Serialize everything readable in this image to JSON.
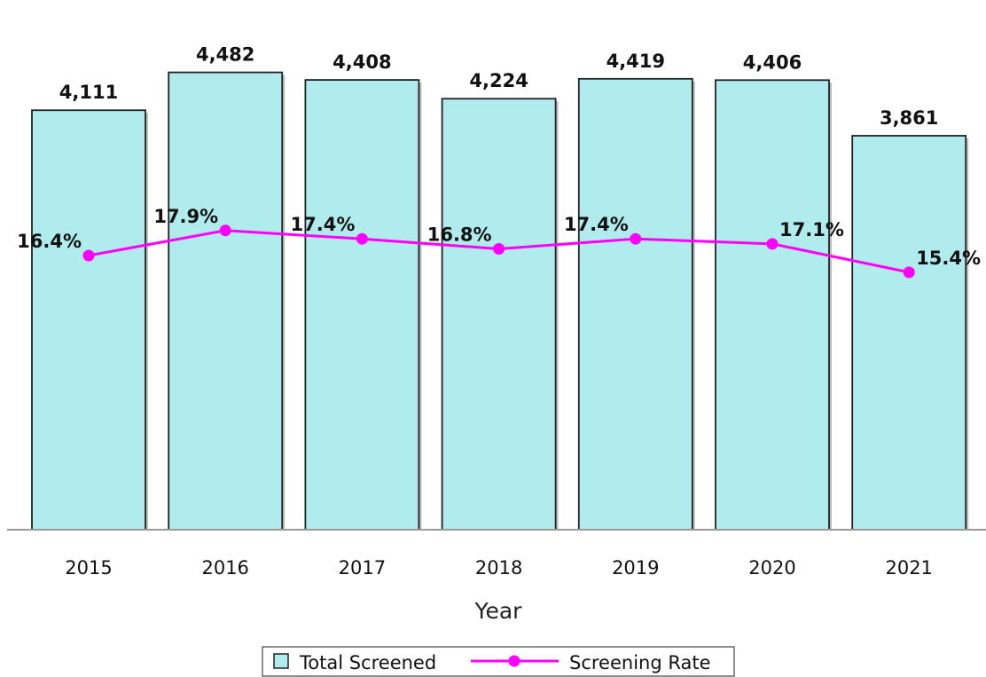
{
  "chart_data": {
    "type": "bar",
    "title": "",
    "xlabel": "Year",
    "ylabel": "",
    "categories": [
      "2015",
      "2016",
      "2017",
      "2018",
      "2019",
      "2020",
      "2021"
    ],
    "series": [
      {
        "name": "Total Screened",
        "type": "bar",
        "values": [
          4111,
          4482,
          4408,
          4224,
          4419,
          4406,
          3861
        ],
        "labels": [
          "4,111",
          "4,482",
          "4,408",
          "4,224",
          "4,419",
          "4,406",
          "3,861"
        ],
        "color": "#b0eced",
        "stroke": "#222222"
      },
      {
        "name": "Screening Rate",
        "type": "line",
        "values": [
          16.4,
          17.9,
          17.4,
          16.8,
          17.4,
          17.1,
          15.4
        ],
        "labels": [
          "16.4%",
          "17.9%",
          "17.4%",
          "16.8%",
          "17.4%",
          "17.1%",
          "15.4%"
        ],
        "color": "#ff00ff"
      }
    ],
    "bar_ylim": [
      0,
      4800
    ],
    "rate_ylim": [
      0,
      29.3
    ],
    "grid": false,
    "legend_position": "bottom-center"
  }
}
